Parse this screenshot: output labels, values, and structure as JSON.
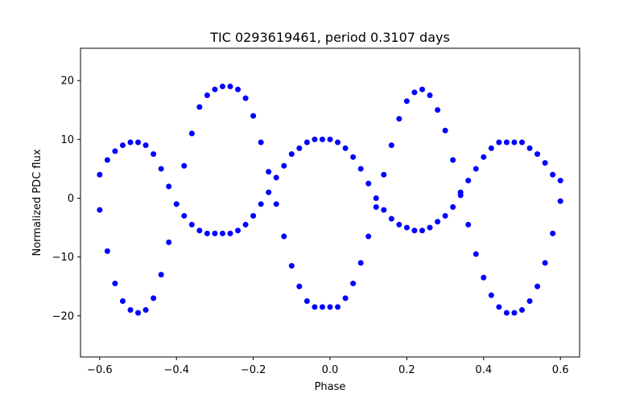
{
  "chart_data": {
    "type": "scatter",
    "title": "TIC 0293619461, period 0.3107 days",
    "xlabel": "Phase",
    "ylabel": "Normalized PDC flux",
    "xlim": [
      -0.65,
      0.65
    ],
    "ylim": [
      -27,
      25.5
    ],
    "xticks": [
      -0.6,
      -0.4,
      -0.2,
      0.0,
      0.2,
      0.4,
      0.6
    ],
    "xtick_labels": [
      "−0.6",
      "−0.4",
      "−0.2",
      "0.0",
      "0.2",
      "0.4",
      "0.6"
    ],
    "yticks": [
      -20,
      -10,
      0,
      10,
      20
    ],
    "ytick_labels": [
      "−20",
      "−10",
      "0",
      "10",
      "20"
    ],
    "grid": false,
    "legend": "none",
    "marker_color": "#0000ff",
    "series": [
      {
        "description": "main folded light curve, primary-phase branch",
        "x": [
          -0.6,
          -0.58,
          -0.56,
          -0.54,
          -0.52,
          -0.5,
          -0.48,
          -0.46,
          -0.44,
          -0.42,
          -0.4,
          -0.38,
          -0.36,
          -0.34,
          -0.32,
          -0.3,
          -0.28,
          -0.26,
          -0.24,
          -0.22,
          -0.2,
          -0.18,
          -0.16,
          -0.14,
          -0.12,
          -0.1,
          -0.08,
          -0.06,
          -0.04,
          -0.02,
          0.0,
          0.02,
          0.04,
          0.06,
          0.08,
          0.1,
          0.12,
          0.14,
          0.16,
          0.18,
          0.2,
          0.22,
          0.24,
          0.26,
          0.28,
          0.3,
          0.32,
          0.34,
          0.36,
          0.38,
          0.4,
          0.42,
          0.44,
          0.46,
          0.48,
          0.5,
          0.52,
          0.54,
          0.56,
          0.58,
          0.6
        ],
        "y": [
          -2,
          -9,
          -14.5,
          -17.5,
          -19,
          -19.5,
          -19,
          -17,
          -13,
          -7.5,
          -1,
          5.5,
          11,
          15.5,
          17.5,
          18.5,
          19,
          19,
          18.5,
          17,
          14,
          9.5,
          4.5,
          -1,
          -6.5,
          -11.5,
          -15,
          -17.5,
          -18.5,
          -18.5,
          -18.5,
          -18.5,
          -17,
          -14.5,
          -11,
          -6.5,
          -1.5,
          4,
          9,
          13.5,
          16.5,
          18,
          18.5,
          17.5,
          15,
          11.5,
          6.5,
          1,
          -4.5,
          -9.5,
          -13.5,
          -16.5,
          -18.5,
          -19.5,
          -19.5,
          -19,
          -17.5,
          -15,
          -11,
          -6,
          -0.5
        ]
      },
      {
        "description": "secondary anti-phase branch",
        "x": [
          -0.6,
          -0.58,
          -0.56,
          -0.54,
          -0.52,
          -0.5,
          -0.48,
          -0.46,
          -0.44,
          -0.42,
          -0.4,
          -0.38,
          -0.36,
          -0.34,
          -0.32,
          -0.3,
          -0.28,
          -0.26,
          -0.24,
          -0.22,
          -0.2,
          -0.18,
          -0.16,
          -0.14,
          -0.12,
          -0.1,
          -0.08,
          -0.06,
          -0.04,
          -0.02,
          0.0,
          0.02,
          0.04,
          0.06,
          0.08,
          0.1,
          0.12,
          0.14,
          0.16,
          0.18,
          0.2,
          0.22,
          0.24,
          0.26,
          0.28,
          0.3,
          0.32,
          0.34,
          0.36,
          0.38,
          0.4,
          0.42,
          0.44,
          0.46,
          0.48,
          0.5,
          0.52,
          0.54,
          0.56,
          0.58,
          0.6
        ],
        "y": [
          4,
          6.5,
          8,
          9,
          9.5,
          9.5,
          9,
          7.5,
          5,
          2,
          -1,
          -3,
          -4.5,
          -5.5,
          -6,
          -6,
          -6,
          -6,
          -5.5,
          -4.5,
          -3,
          -1,
          1,
          3.5,
          5.5,
          7.5,
          8.5,
          9.5,
          10,
          10,
          10,
          9.5,
          8.5,
          7,
          5,
          2.5,
          0,
          -2,
          -3.5,
          -4.5,
          -5,
          -5.5,
          -5.5,
          -5,
          -4,
          -3,
          -1.5,
          0.5,
          3,
          5,
          7,
          8.5,
          9.5,
          9.5,
          9.5,
          9.5,
          8.5,
          7.5,
          6,
          4,
          3
        ]
      }
    ]
  }
}
